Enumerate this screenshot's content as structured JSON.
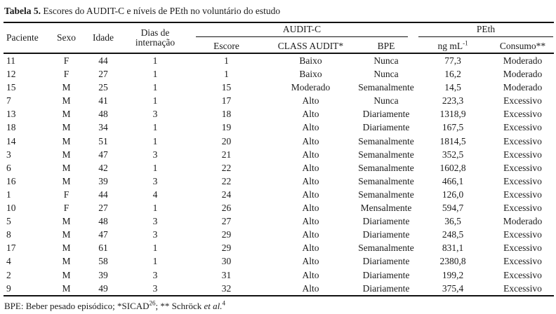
{
  "title": {
    "label": "Tabela 5.",
    "text": " Escores do AUDIT-C e níveis de PEth no voluntário do estudo"
  },
  "table": {
    "header": {
      "paciente": "Paciente",
      "sexo": "Sexo",
      "idade": "Idade",
      "dias_line1": "Dias de",
      "dias_line2": "internação",
      "group_auditc": "AUDIT-C",
      "group_peth": "PEth",
      "escore": "Escore",
      "class_audit": "CLASS AUDIT*",
      "bpe": "BPE",
      "unit_base": "ng mL",
      "unit_sup": "-1",
      "consumo": "Consumo**"
    },
    "rows": [
      [
        "11",
        "F",
        "44",
        "1",
        "1",
        "Baixo",
        "Nunca",
        "77,3",
        "Moderado"
      ],
      [
        "12",
        "F",
        "27",
        "1",
        "1",
        "Baixo",
        "Nunca",
        "16,2",
        "Moderado"
      ],
      [
        "15",
        "M",
        "25",
        "1",
        "15",
        "Moderado",
        "Semanalmente",
        "14,5",
        "Moderado"
      ],
      [
        "7",
        "M",
        "41",
        "1",
        "17",
        "Alto",
        "Nunca",
        "223,3",
        "Excessivo"
      ],
      [
        "13",
        "M",
        "48",
        "3",
        "18",
        "Alto",
        "Diariamente",
        "1318,9",
        "Excessivo"
      ],
      [
        "18",
        "M",
        "34",
        "1",
        "19",
        "Alto",
        "Diariamente",
        "167,5",
        "Excessivo"
      ],
      [
        "14",
        "M",
        "51",
        "1",
        "20",
        "Alto",
        "Semanalmente",
        "1814,5",
        "Excessivo"
      ],
      [
        "3",
        "M",
        "47",
        "3",
        "21",
        "Alto",
        "Semanalmente",
        "352,5",
        "Excessivo"
      ],
      [
        "6",
        "M",
        "42",
        "1",
        "22",
        "Alto",
        "Semanalmente",
        "1602,8",
        "Excessivo"
      ],
      [
        "16",
        "M",
        "39",
        "3",
        "22",
        "Alto",
        "Semanalmente",
        "466,1",
        "Excessivo"
      ],
      [
        "1",
        "F",
        "44",
        "4",
        "24",
        "Alto",
        "Semanalmente",
        "126,0",
        "Excessivo"
      ],
      [
        "10",
        "F",
        "27",
        "1",
        "26",
        "Alto",
        "Mensalmente",
        "594,7",
        "Excessivo"
      ],
      [
        "5",
        "M",
        "48",
        "3",
        "27",
        "Alto",
        "Diariamente",
        "36,5",
        "Moderado"
      ],
      [
        "8",
        "M",
        "47",
        "3",
        "29",
        "Alto",
        "Diariamente",
        "248,5",
        "Excessivo"
      ],
      [
        "17",
        "M",
        "61",
        "1",
        "29",
        "Alto",
        "Semanalmente",
        "831,1",
        "Excessivo"
      ],
      [
        "4",
        "M",
        "58",
        "1",
        "30",
        "Alto",
        "Diariamente",
        "2380,8",
        "Excessivo"
      ],
      [
        "2",
        "M",
        "39",
        "3",
        "31",
        "Alto",
        "Diariamente",
        "199,2",
        "Excessivo"
      ],
      [
        "9",
        "M",
        "49",
        "3",
        "32",
        "Alto",
        "Diariamente",
        "375,4",
        "Excessivo"
      ]
    ]
  },
  "footnote": {
    "part1": "BPE: Beber pesado episódico; *SICAD",
    "sup1": "26",
    "part2": "; ** Schröck ",
    "italic": "et al.",
    "sup2": "4"
  },
  "colors": {
    "text": "#1b1b1b",
    "rule": "#111111",
    "background": "#ffffff"
  }
}
